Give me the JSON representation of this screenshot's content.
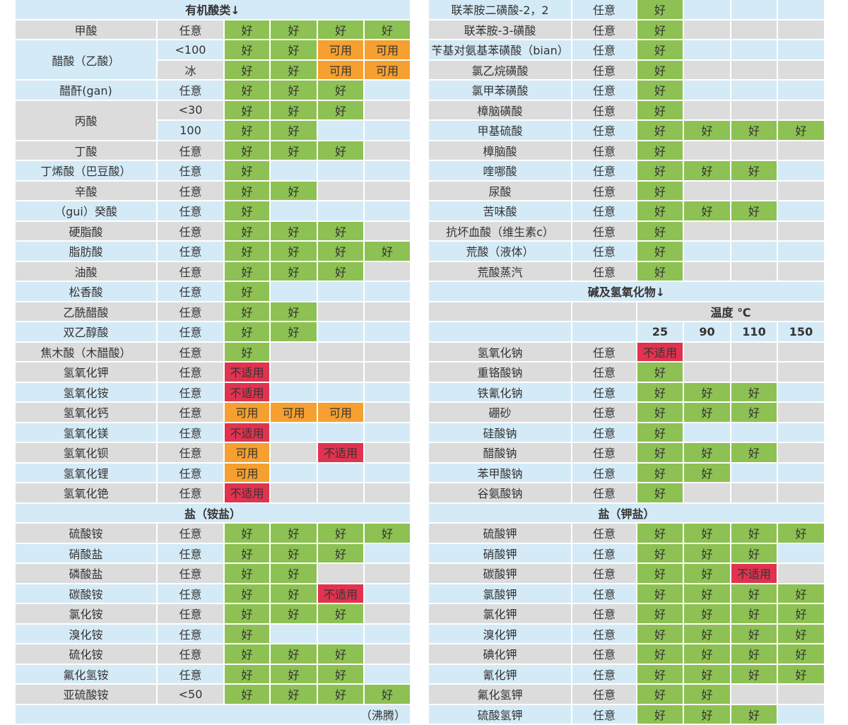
{
  "colors": {
    "好": "#8dc153",
    "可用": "#f5a030",
    "不适用": "#e0334f"
  },
  "left": [
    {
      "header": "有机酸类↓"
    },
    {
      "name": "甲酸",
      "cond": "任意",
      "r": [
        "好",
        "好",
        "好",
        "好"
      ]
    },
    {
      "name": "醋酸（乙酸）",
      "span": 2,
      "cond": "<100",
      "r": [
        "好",
        "好",
        "可用",
        "可用"
      ]
    },
    {
      "cond": "冰",
      "r": [
        "好",
        "好",
        "可用",
        "可用"
      ]
    },
    {
      "name": "醋酐(gan)",
      "cond": "任意",
      "r": [
        "好",
        "好",
        "好",
        ""
      ]
    },
    {
      "name": "丙酸",
      "span": 2,
      "cond": "<30",
      "r": [
        "好",
        "好",
        "好",
        ""
      ]
    },
    {
      "cond": "100",
      "r": [
        "好",
        "好",
        "",
        ""
      ]
    },
    {
      "name": "丁酸",
      "cond": "任意",
      "r": [
        "好",
        "好",
        "好",
        ""
      ]
    },
    {
      "name": "丁烯酸（巴豆酸）",
      "cond": "任意",
      "r": [
        "好",
        "",
        "",
        ""
      ]
    },
    {
      "name": "辛酸",
      "cond": "任意",
      "r": [
        "好",
        "好",
        "",
        ""
      ]
    },
    {
      "name": "（gui）癸酸",
      "cond": "任意",
      "r": [
        "好",
        "",
        "",
        ""
      ]
    },
    {
      "name": "硬脂酸",
      "cond": "任意",
      "r": [
        "好",
        "好",
        "好",
        ""
      ]
    },
    {
      "name": "脂肪酸",
      "cond": "任意",
      "r": [
        "好",
        "好",
        "好",
        "好"
      ]
    },
    {
      "name": "油酸",
      "cond": "任意",
      "r": [
        "好",
        "好",
        "好",
        ""
      ]
    },
    {
      "name": "松香酸",
      "cond": "任意",
      "r": [
        "好",
        "",
        "",
        ""
      ]
    },
    {
      "name": "乙酰醋酸",
      "cond": "任意",
      "r": [
        "好",
        "好",
        "",
        ""
      ]
    },
    {
      "name": "双乙醇酸",
      "cond": "任意",
      "r": [
        "好",
        "好",
        "",
        ""
      ]
    },
    {
      "name": "焦木酸（木醋酸）",
      "cond": "任意",
      "r": [
        "好",
        "",
        "",
        ""
      ]
    },
    {
      "name": "氢氧化钾",
      "cond": "任意",
      "r": [
        "不适用",
        "",
        "",
        ""
      ]
    },
    {
      "name": "氢氧化铵",
      "cond": "任意",
      "r": [
        "不适用",
        "",
        "",
        ""
      ]
    },
    {
      "name": "氢氧化钙",
      "cond": "任意",
      "r": [
        "可用",
        "可用",
        "可用",
        ""
      ]
    },
    {
      "name": "氢氧化镁",
      "cond": "任意",
      "r": [
        "不适用",
        "",
        "",
        ""
      ]
    },
    {
      "name": "氢氧化钡",
      "cond": "任意",
      "r": [
        "可用",
        "",
        "不适用",
        ""
      ]
    },
    {
      "name": "氢氧化锂",
      "cond": "任意",
      "r": [
        "可用",
        "",
        "",
        ""
      ]
    },
    {
      "name": "氢氧化铯",
      "cond": "任意",
      "r": [
        "不适用",
        "",
        "",
        ""
      ]
    },
    {
      "header": "盐（铵盐）"
    },
    {
      "name": "硫酸铵",
      "cond": "任意",
      "r": [
        "好",
        "好",
        "好",
        "好"
      ]
    },
    {
      "name": "硝酸盐",
      "cond": "任意",
      "r": [
        "好",
        "好",
        "好",
        ""
      ]
    },
    {
      "name": "磷酸盐",
      "cond": "任意",
      "r": [
        "好",
        "好",
        "",
        ""
      ]
    },
    {
      "name": "碳酸铵",
      "cond": "任意",
      "r": [
        "好",
        "好",
        "不适用",
        ""
      ]
    },
    {
      "name": "氯化铵",
      "cond": "任意",
      "r": [
        "好",
        "好",
        "好",
        ""
      ]
    },
    {
      "name": "溴化铵",
      "cond": "任意",
      "r": [
        "好",
        "",
        "",
        ""
      ]
    },
    {
      "name": "硫化铵",
      "cond": "任意",
      "r": [
        "好",
        "好",
        "好",
        ""
      ]
    },
    {
      "name": "氟化氢铵",
      "cond": "任意",
      "r": [
        "好",
        "好",
        "好",
        ""
      ]
    },
    {
      "name": "亚硫酸铵",
      "cond": "<50",
      "r": [
        "好",
        "好",
        "好",
        "好"
      ]
    },
    {
      "note": "（沸腾）"
    }
  ],
  "right": [
    {
      "name": "联苯胺二磺酸-2，2",
      "cond": "任意",
      "r": [
        "好",
        "",
        "",
        ""
      ]
    },
    {
      "name": "联苯胺-3-磺酸",
      "cond": "任意",
      "r": [
        "好",
        "",
        "",
        ""
      ]
    },
    {
      "name": "苄基对氨基苯磺酸（bian）",
      "cond": "任意",
      "r": [
        "好",
        "",
        "",
        ""
      ]
    },
    {
      "name": "氯乙烷磺酸",
      "cond": "任意",
      "r": [
        "好",
        "",
        "",
        ""
      ]
    },
    {
      "name": "氯甲苯磺酸",
      "cond": "任意",
      "r": [
        "好",
        "",
        "",
        ""
      ]
    },
    {
      "name": "樟脑磺酸",
      "cond": "任意",
      "r": [
        "好",
        "",
        "",
        ""
      ]
    },
    {
      "name": "甲基硫酸",
      "cond": "任意",
      "r": [
        "好",
        "好",
        "好",
        "好"
      ]
    },
    {
      "name": "樟脑酸",
      "cond": "任意",
      "r": [
        "好",
        "",
        "",
        ""
      ]
    },
    {
      "name": "喹哪酸",
      "cond": "任意",
      "r": [
        "好",
        "好",
        "好",
        ""
      ]
    },
    {
      "name": "尿酸",
      "cond": "任意",
      "r": [
        "好",
        "",
        "",
        ""
      ]
    },
    {
      "name": "苦味酸",
      "cond": "任意",
      "r": [
        "好",
        "好",
        "好",
        ""
      ]
    },
    {
      "name": "抗坏血酸（维生素c）",
      "cond": "任意",
      "r": [
        "好",
        "",
        "",
        ""
      ]
    },
    {
      "name": "荒酸（液体）",
      "cond": "任意",
      "r": [
        "好",
        "",
        "",
        ""
      ]
    },
    {
      "name": "荒酸蒸汽",
      "cond": "任意",
      "r": [
        "好",
        "",
        "",
        ""
      ]
    },
    {
      "header": "碱及氢氧化物↓"
    },
    {
      "temp_label": "温度 ℃"
    },
    {
      "temps": [
        "25",
        "90",
        "110",
        "150"
      ]
    },
    {
      "name": "氢氧化钠",
      "cond": "任意",
      "r": [
        "不适用",
        "",
        "",
        ""
      ]
    },
    {
      "name": "重铬酸钠",
      "cond": "任意",
      "r": [
        "好",
        "",
        "",
        ""
      ]
    },
    {
      "name": "铁氰化钠",
      "cond": "任意",
      "r": [
        "好",
        "好",
        "好",
        ""
      ]
    },
    {
      "name": "硼砂",
      "cond": "任意",
      "r": [
        "好",
        "好",
        "好",
        ""
      ]
    },
    {
      "name": "硅酸钠",
      "cond": "任意",
      "r": [
        "好",
        "",
        "",
        ""
      ]
    },
    {
      "name": "醋酸钠",
      "cond": "任意",
      "r": [
        "好",
        "好",
        "好",
        ""
      ]
    },
    {
      "name": "苯甲酸钠",
      "cond": "任意",
      "r": [
        "好",
        "好",
        "",
        ""
      ]
    },
    {
      "name": "谷氨酸钠",
      "cond": "任意",
      "r": [
        "好",
        "",
        "",
        ""
      ]
    },
    {
      "header": "盐（钾盐）"
    },
    {
      "name": "硫酸钾",
      "cond": "任意",
      "r": [
        "好",
        "好",
        "好",
        "好"
      ]
    },
    {
      "name": "硝酸钾",
      "cond": "任意",
      "r": [
        "好",
        "好",
        "好",
        ""
      ]
    },
    {
      "name": "碳酸钾",
      "cond": "任意",
      "r": [
        "好",
        "好",
        "不适用",
        ""
      ]
    },
    {
      "name": "氯酸钾",
      "cond": "任意",
      "r": [
        "好",
        "好",
        "好",
        "好"
      ]
    },
    {
      "name": "氯化钾",
      "cond": "任意",
      "r": [
        "好",
        "好",
        "好",
        "好"
      ]
    },
    {
      "name": "溴化钾",
      "cond": "任意",
      "r": [
        "好",
        "好",
        "好",
        "好"
      ]
    },
    {
      "name": "碘化钾",
      "cond": "任意",
      "r": [
        "好",
        "好",
        "好",
        "好"
      ]
    },
    {
      "name": "氰化钾",
      "cond": "任意",
      "r": [
        "好",
        "好",
        "好",
        "好"
      ]
    },
    {
      "name": "氟化氢钾",
      "cond": "任意",
      "r": [
        "好",
        "好",
        "",
        ""
      ]
    },
    {
      "name": "硫酸氢钾",
      "cond": "任意",
      "r": [
        "好",
        "好",
        "好",
        ""
      ]
    }
  ]
}
